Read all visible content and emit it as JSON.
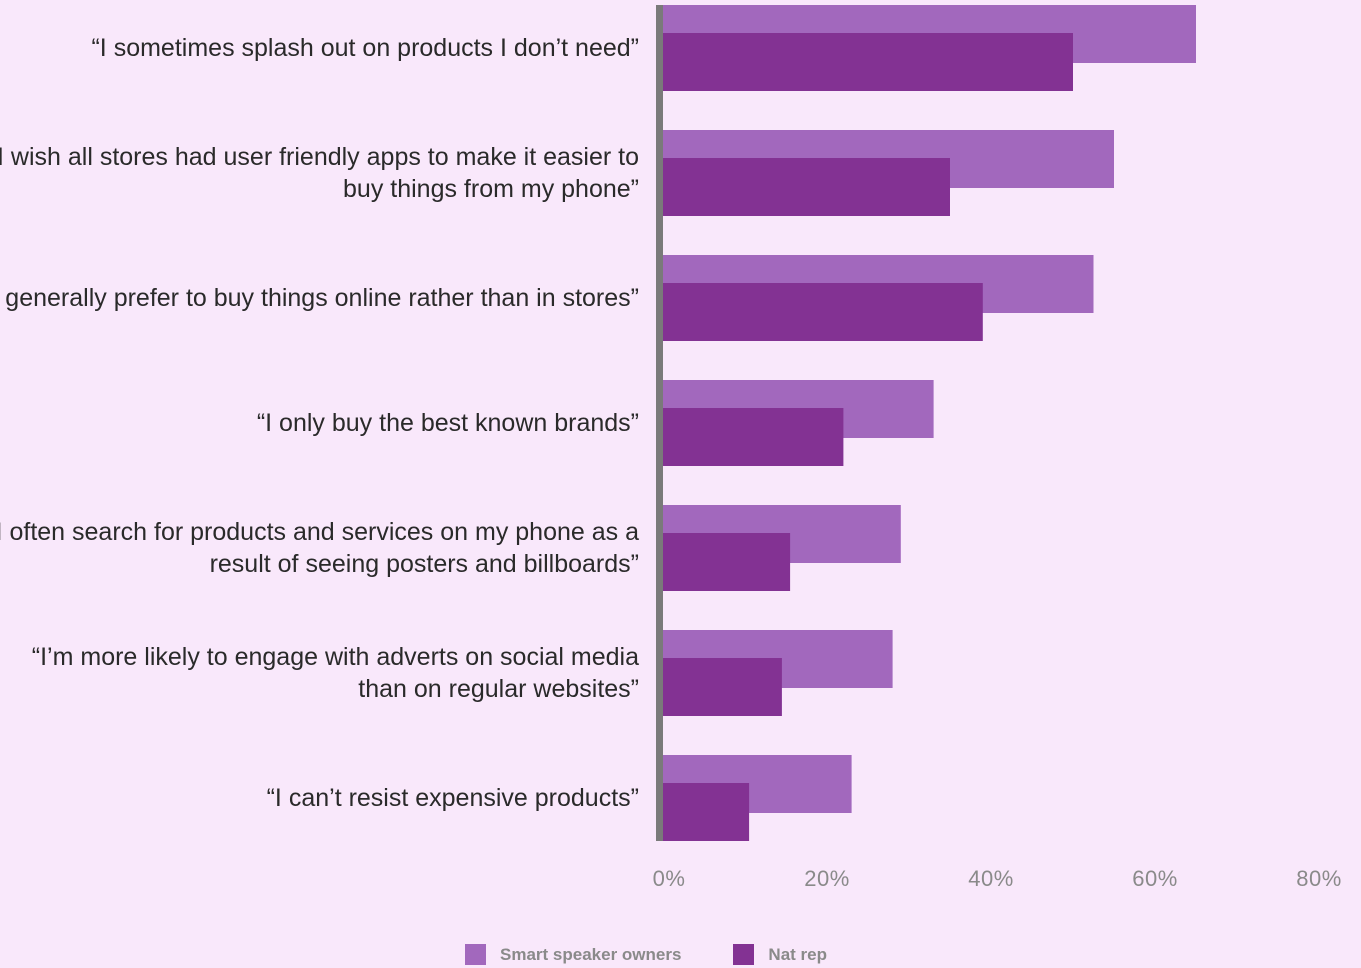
{
  "chart_data": {
    "type": "bar",
    "orientation": "horizontal",
    "categories": [
      "“I sometimes splash out on products I don’t need”",
      "“I wish all stores had user friendly apps to make it easier to buy things from my phone”",
      "“I generally prefer to buy things online rather than in stores”",
      "“I only buy the best known brands”",
      "“I often search for products and services on my phone as a result of seeing posters and billboards”",
      "“I’m more likely to engage with adverts on social media than on regular websites”",
      "“I can’t resist expensive products”"
    ],
    "series": [
      {
        "name": "Smart speaker owners",
        "color": "#a268bd",
        "values": [
          65,
          55,
          52.5,
          33,
          29,
          28,
          23
        ]
      },
      {
        "name": "Nat rep",
        "color": "#833293",
        "values": [
          50,
          35,
          39,
          22,
          15.5,
          14.5,
          10.5
        ]
      }
    ],
    "xticks": [
      "0%",
      "20%",
      "40%",
      "60%",
      "80%"
    ],
    "xlim": [
      0,
      80
    ],
    "grid": false,
    "legend_position": "bottom"
  },
  "colors": {
    "background": "#f9e8fb",
    "axis": "#7a7a7a"
  }
}
